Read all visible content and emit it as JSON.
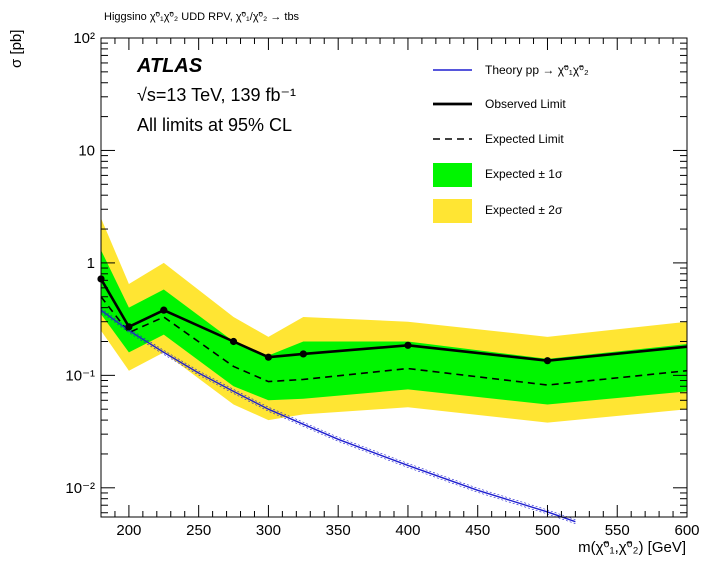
{
  "chart_data": {
    "type": "line",
    "title": "Higgsino χ̃⁰₁χ̃⁰₂ UDD RPV, χ̃⁰₁/χ̃⁰₂ → tbs",
    "xlabel": "m(χ̃⁰₁,χ̃⁰₂) [GeV]",
    "ylabel": "σ [pb]",
    "xlim": [
      180,
      600
    ],
    "ylim": [
      0.0055,
      100
    ],
    "yscale": "log",
    "x_ticks": [
      "200",
      "250",
      "300",
      "350",
      "400",
      "450",
      "500",
      "550",
      "600"
    ],
    "y_ticks": [
      "10⁻²",
      "10⁻¹",
      "1",
      "10",
      "10²"
    ],
    "annotations": {
      "atlas": "ATLAS",
      "energy": "√s=13 TeV, 139 fb⁻¹",
      "cl": "All limits at 95% CL"
    },
    "legend": {
      "placement": "top-right",
      "theory": "Theory pp → χ̃⁰₁χ̃⁰₂",
      "observed": "Observed Limit",
      "expected": "Expected Limit",
      "band1": "Expected ± 1σ",
      "band2": "Expected ± 2σ"
    },
    "colors": {
      "theory": "#1f1fd0",
      "observed": "#000000",
      "expected": "#000000",
      "band1": "#00f500",
      "band2": "#ffe533"
    },
    "x": [
      180,
      200,
      225,
      275,
      300,
      325,
      400,
      500,
      600
    ],
    "series": [
      {
        "name": "Observed Limit",
        "values": [
          0.72,
          0.27,
          0.38,
          0.2,
          0.145,
          0.155,
          0.185,
          0.135,
          0.18
        ]
      },
      {
        "name": "Expected Limit",
        "values": [
          0.5,
          0.24,
          0.33,
          0.12,
          0.088,
          0.092,
          0.115,
          0.082,
          0.11
        ]
      },
      {
        "name": "Expected ± 1σ low",
        "values": [
          0.35,
          0.16,
          0.23,
          0.08,
          0.06,
          0.062,
          0.075,
          0.055,
          0.072
        ]
      },
      {
        "name": "Expected ± 1σ high",
        "values": [
          1.3,
          0.4,
          0.58,
          0.2,
          0.15,
          0.2,
          0.2,
          0.14,
          0.19
        ]
      },
      {
        "name": "Expected ± 2σ low",
        "values": [
          0.25,
          0.11,
          0.16,
          0.055,
          0.04,
          0.045,
          0.052,
          0.038,
          0.05
        ]
      },
      {
        "name": "Expected ± 2σ high",
        "values": [
          2.5,
          0.65,
          1.0,
          0.33,
          0.22,
          0.33,
          0.3,
          0.22,
          0.3
        ]
      }
    ],
    "theory": {
      "x": [
        180,
        200,
        225,
        250,
        275,
        300,
        350,
        400,
        450,
        500,
        520
      ],
      "values": [
        0.38,
        0.25,
        0.16,
        0.105,
        0.072,
        0.05,
        0.027,
        0.0158,
        0.0095,
        0.0061,
        0.005
      ]
    },
    "observed_markers_x": [
      180,
      200,
      225,
      275,
      300,
      325,
      400,
      500
    ]
  }
}
